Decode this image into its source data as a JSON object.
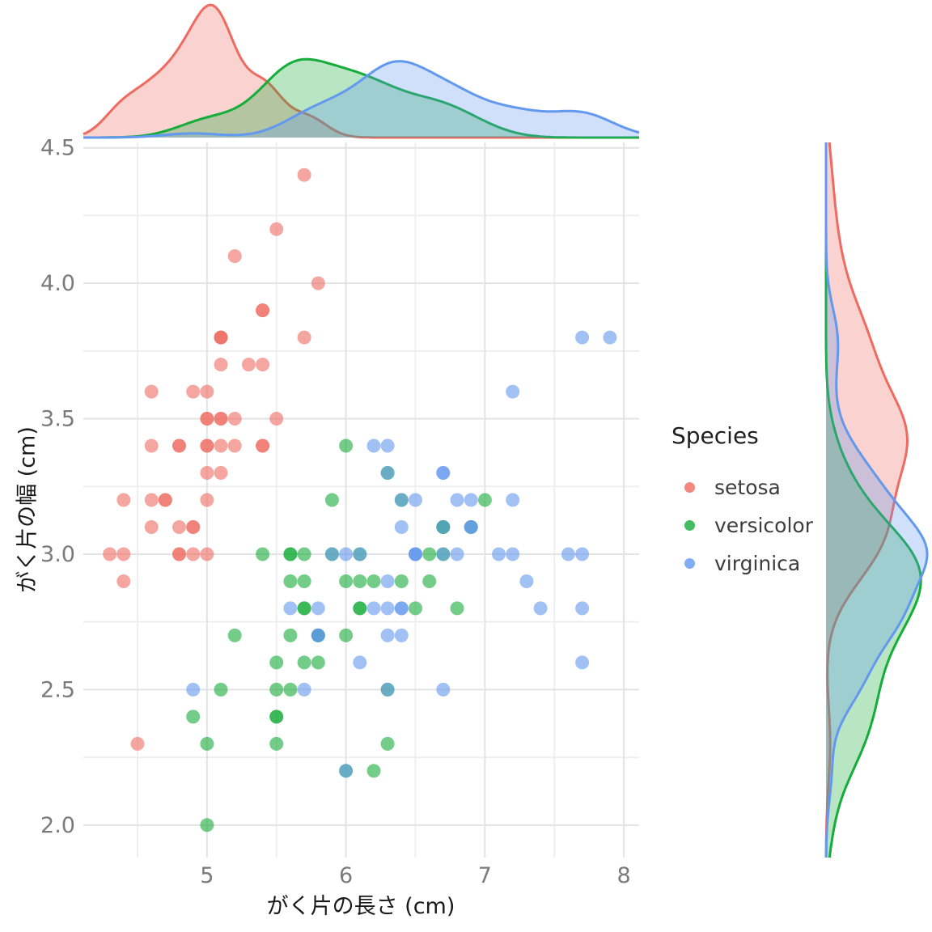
{
  "chart_data": {
    "type": "scatter",
    "subtype": "joint_plot_with_marginal_density",
    "title": "",
    "xlabel": "がく片の長さ (cm)",
    "ylabel": "がく片の幅 (cm)",
    "xlim": [
      4.11,
      8.11
    ],
    "ylim": [
      1.88,
      4.52
    ],
    "x_major_ticks": [
      5,
      6,
      7,
      8
    ],
    "x_tick_labels": [
      "5",
      "6",
      "7",
      "8"
    ],
    "x_minor_ticks": [
      4.5,
      5.5,
      6.5,
      7.5
    ],
    "y_major_ticks": [
      2.0,
      2.5,
      3.0,
      3.5,
      4.0,
      4.5
    ],
    "y_tick_labels": [
      "2.0",
      "2.5",
      "3.0",
      "3.5",
      "4.0",
      "4.5"
    ],
    "y_minor_ticks": [
      2.25,
      2.75,
      3.25,
      3.75,
      4.25
    ],
    "grid": true,
    "grid_major_color": "#e3e3e3",
    "grid_minor_color": "#ededed",
    "tick_label_color": "#7b7b7b",
    "point_opacity": 0.6,
    "density_fill_opacity": 0.3,
    "marginals": {
      "top": "density of sepal length",
      "right": "density of sepal width"
    },
    "legend": {
      "title": "Species",
      "position": "right",
      "items": [
        {
          "label": "setosa",
          "color": "#EF6A60"
        },
        {
          "label": "versicolor",
          "color": "#15AC39"
        },
        {
          "label": "virginica",
          "color": "#6398EF"
        }
      ]
    },
    "series": [
      {
        "name": "setosa",
        "color": "#EF6A60",
        "points": [
          [
            5.1,
            3.5
          ],
          [
            4.9,
            3.0
          ],
          [
            4.7,
            3.2
          ],
          [
            4.6,
            3.1
          ],
          [
            5.0,
            3.6
          ],
          [
            5.4,
            3.9
          ],
          [
            4.6,
            3.4
          ],
          [
            5.0,
            3.4
          ],
          [
            4.4,
            2.9
          ],
          [
            4.9,
            3.1
          ],
          [
            5.4,
            3.7
          ],
          [
            4.8,
            3.4
          ],
          [
            4.8,
            3.0
          ],
          [
            4.3,
            3.0
          ],
          [
            5.8,
            4.0
          ],
          [
            5.7,
            4.4
          ],
          [
            5.4,
            3.9
          ],
          [
            5.1,
            3.5
          ],
          [
            5.7,
            3.8
          ],
          [
            5.1,
            3.8
          ],
          [
            5.4,
            3.4
          ],
          [
            5.1,
            3.7
          ],
          [
            4.6,
            3.6
          ],
          [
            5.1,
            3.3
          ],
          [
            4.8,
            3.4
          ],
          [
            5.0,
            3.0
          ],
          [
            5.0,
            3.4
          ],
          [
            5.2,
            3.5
          ],
          [
            5.2,
            3.4
          ],
          [
            4.7,
            3.2
          ],
          [
            4.8,
            3.1
          ],
          [
            5.4,
            3.4
          ],
          [
            5.2,
            4.1
          ],
          [
            5.5,
            4.2
          ],
          [
            4.9,
            3.1
          ],
          [
            5.0,
            3.2
          ],
          [
            5.5,
            3.5
          ],
          [
            4.9,
            3.6
          ],
          [
            4.4,
            3.0
          ],
          [
            5.1,
            3.4
          ],
          [
            5.0,
            3.5
          ],
          [
            4.5,
            2.3
          ],
          [
            4.4,
            3.2
          ],
          [
            5.0,
            3.5
          ],
          [
            5.1,
            3.8
          ],
          [
            4.8,
            3.0
          ],
          [
            5.1,
            3.8
          ],
          [
            4.6,
            3.2
          ],
          [
            5.3,
            3.7
          ],
          [
            5.0,
            3.3
          ]
        ]
      },
      {
        "name": "versicolor",
        "color": "#15AC39",
        "points": [
          [
            7.0,
            3.2
          ],
          [
            6.4,
            3.2
          ],
          [
            6.9,
            3.1
          ],
          [
            5.5,
            2.3
          ],
          [
            6.5,
            2.8
          ],
          [
            5.7,
            2.8
          ],
          [
            6.3,
            3.3
          ],
          [
            4.9,
            2.4
          ],
          [
            6.6,
            2.9
          ],
          [
            5.2,
            2.7
          ],
          [
            5.0,
            2.0
          ],
          [
            5.9,
            3.0
          ],
          [
            6.0,
            2.2
          ],
          [
            6.1,
            2.9
          ],
          [
            5.6,
            2.9
          ],
          [
            6.7,
            3.1
          ],
          [
            5.6,
            3.0
          ],
          [
            5.8,
            2.7
          ],
          [
            6.2,
            2.2
          ],
          [
            5.6,
            2.5
          ],
          [
            5.9,
            3.2
          ],
          [
            6.1,
            2.8
          ],
          [
            6.3,
            2.5
          ],
          [
            6.1,
            2.8
          ],
          [
            6.4,
            2.9
          ],
          [
            6.6,
            3.0
          ],
          [
            6.8,
            2.8
          ],
          [
            6.7,
            3.0
          ],
          [
            6.0,
            2.9
          ],
          [
            5.7,
            2.6
          ],
          [
            5.5,
            2.4
          ],
          [
            5.5,
            2.4
          ],
          [
            5.8,
            2.7
          ],
          [
            6.0,
            2.7
          ],
          [
            5.4,
            3.0
          ],
          [
            6.0,
            3.4
          ],
          [
            6.7,
            3.1
          ],
          [
            6.3,
            2.3
          ],
          [
            5.6,
            3.0
          ],
          [
            5.5,
            2.5
          ],
          [
            5.5,
            2.6
          ],
          [
            6.1,
            3.0
          ],
          [
            5.8,
            2.6
          ],
          [
            5.0,
            2.3
          ],
          [
            5.6,
            2.7
          ],
          [
            5.7,
            3.0
          ],
          [
            5.7,
            2.9
          ],
          [
            6.2,
            2.9
          ],
          [
            5.1,
            2.5
          ],
          [
            5.7,
            2.8
          ]
        ]
      },
      {
        "name": "virginica",
        "color": "#6398EF",
        "points": [
          [
            6.3,
            3.3
          ],
          [
            5.8,
            2.7
          ],
          [
            7.1,
            3.0
          ],
          [
            6.3,
            2.9
          ],
          [
            6.5,
            3.0
          ],
          [
            7.6,
            3.0
          ],
          [
            4.9,
            2.5
          ],
          [
            7.3,
            2.9
          ],
          [
            6.7,
            2.5
          ],
          [
            7.2,
            3.6
          ],
          [
            6.5,
            3.2
          ],
          [
            6.4,
            2.7
          ],
          [
            6.8,
            3.0
          ],
          [
            5.7,
            2.5
          ],
          [
            5.8,
            2.8
          ],
          [
            6.4,
            3.2
          ],
          [
            6.5,
            3.0
          ],
          [
            7.7,
            3.8
          ],
          [
            7.7,
            2.6
          ],
          [
            6.0,
            2.2
          ],
          [
            6.9,
            3.2
          ],
          [
            5.6,
            2.8
          ],
          [
            7.7,
            2.8
          ],
          [
            6.3,
            2.7
          ],
          [
            6.7,
            3.3
          ],
          [
            7.2,
            3.2
          ],
          [
            6.2,
            2.8
          ],
          [
            6.1,
            3.0
          ],
          [
            6.4,
            2.8
          ],
          [
            7.2,
            3.0
          ],
          [
            7.4,
            2.8
          ],
          [
            7.9,
            3.8
          ],
          [
            6.4,
            2.8
          ],
          [
            6.3,
            2.8
          ],
          [
            6.1,
            2.6
          ],
          [
            7.7,
            3.0
          ],
          [
            6.3,
            3.4
          ],
          [
            6.4,
            3.1
          ],
          [
            6.0,
            3.0
          ],
          [
            6.9,
            3.1
          ],
          [
            6.7,
            3.1
          ],
          [
            6.9,
            3.1
          ],
          [
            5.8,
            2.7
          ],
          [
            6.8,
            3.2
          ],
          [
            6.7,
            3.3
          ],
          [
            6.7,
            3.0
          ],
          [
            6.3,
            2.5
          ],
          [
            6.5,
            3.0
          ],
          [
            6.2,
            3.4
          ],
          [
            5.9,
            3.0
          ]
        ]
      }
    ]
  }
}
